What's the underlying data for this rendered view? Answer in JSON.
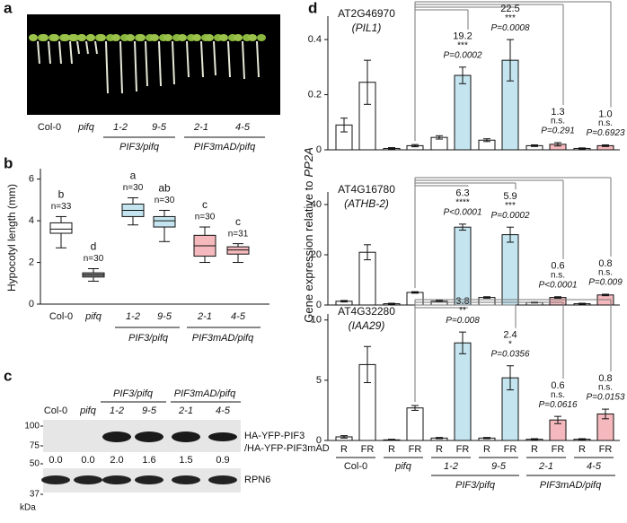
{
  "panels": {
    "a": {
      "label": "a",
      "lanes": [
        "Col-0",
        "pifq",
        "1-2",
        "9-5",
        "2-1",
        "4-5"
      ],
      "groups": [
        "PIF3/pifq",
        "PIF3mAD/pifq"
      ]
    },
    "b": {
      "label": "b"
    },
    "c": {
      "label": "c",
      "lanes": [
        "Col-0",
        "pifq",
        "1-2",
        "9-5",
        "2-1",
        "4-5"
      ],
      "groups": [
        "PIF3/pifq",
        "PIF3mAD/pifq"
      ],
      "markers": [
        100,
        75,
        50,
        37
      ],
      "marker_unit": "kDa",
      "band_labels": [
        "HA-YFP-PIF3",
        "/HA-YFP-PIF3mAD"
      ],
      "loading_label": "RPN6",
      "quantification": [
        "0.0",
        "0.0",
        "2.0",
        "1.6",
        "1.5",
        "0.9"
      ]
    },
    "d": {
      "label": "d",
      "y_label": "Gene expression relative to",
      "y_label_gene": "PP2A"
    }
  },
  "chart_data": [
    {
      "type": "box",
      "y_label": "Hypocotyl length (mm)",
      "categories": [
        "Col-0",
        "pifq",
        "1-2",
        "9-5",
        "2-1",
        "4-5"
      ],
      "groups": [
        "PIF3/pifq",
        "PIF3mAD/pifq"
      ],
      "min": [
        2.7,
        1.1,
        3.8,
        3.0,
        2.0,
        2.0
      ],
      "q1": [
        3.4,
        1.3,
        4.2,
        3.7,
        2.3,
        2.4
      ],
      "median": [
        3.6,
        1.4,
        4.5,
        4.0,
        2.8,
        2.6
      ],
      "q3": [
        3.9,
        1.5,
        4.8,
        4.2,
        3.3,
        2.75
      ],
      "max": [
        4.2,
        1.7,
        5.1,
        4.5,
        3.7,
        2.9
      ],
      "letters": [
        "b",
        "d",
        "a",
        "ab",
        "c",
        "c"
      ],
      "n_labels": [
        "n=33",
        "n=30",
        "n=30",
        "n=30",
        "n=30",
        "n=31"
      ],
      "colors": [
        "#ffffff",
        "#8c8c8c",
        "#c4e5f0",
        "#c4e5f0",
        "#f5b9bd",
        "#f5b9bd"
      ],
      "ylim": [
        0,
        6.5
      ],
      "yticks": [
        0,
        2,
        4,
        6
      ]
    },
    {
      "type": "bar",
      "title": "AT2G46970",
      "subtitle": "(PIL1)",
      "values": [
        0.09,
        0.245,
        0.005,
        0.015,
        0.045,
        0.27,
        0.035,
        0.325,
        0.015,
        0.02,
        0.005,
        0.015
      ],
      "errors": [
        0.025,
        0.08,
        0.003,
        0.004,
        0.006,
        0.03,
        0.005,
        0.075,
        0.003,
        0.006,
        0.002,
        0.003
      ],
      "colors": [
        "#ffffff",
        "#ffffff",
        "#ffffff",
        "#ffffff",
        "#ffffff",
        "#c4e5f0",
        "#ffffff",
        "#c4e5f0",
        "#ffffff",
        "#f5b9bd",
        "#ffffff",
        "#f5b9bd"
      ],
      "ylim": [
        0,
        0.485
      ],
      "yticks": [
        0,
        0.2,
        0.4
      ],
      "annotations": [
        {
          "fold": "19.2",
          "stars": "***",
          "p": "P=0.0002"
        },
        {
          "fold": "22.5",
          "stars": "***",
          "p": "P=0.0008"
        },
        {
          "fold": "1.3",
          "stars": "n.s.",
          "p": "P=0.291"
        },
        {
          "fold": "1.0",
          "stars": "n.s.",
          "p": "P=0.6923"
        }
      ]
    },
    {
      "type": "bar",
      "title": "AT4G16780",
      "subtitle": "(ATHB-2)",
      "values": [
        1.5,
        21,
        0.5,
        5,
        1.5,
        31,
        3,
        28,
        1,
        3,
        0.5,
        4
      ],
      "errors": [
        0.3,
        3,
        0.2,
        0.3,
        0.3,
        1.2,
        0.3,
        3,
        0.2,
        0.3,
        0.2,
        0.3
      ],
      "colors": [
        "#ffffff",
        "#ffffff",
        "#ffffff",
        "#ffffff",
        "#ffffff",
        "#c4e5f0",
        "#ffffff",
        "#c4e5f0",
        "#ffffff",
        "#f5b9bd",
        "#ffffff",
        "#f5b9bd"
      ],
      "ylim": [
        0,
        45
      ],
      "yticks": [
        0,
        20,
        40
      ],
      "annotations": [
        {
          "fold": "6.3",
          "stars": "****",
          "p": "P<0.0001"
        },
        {
          "fold": "5.9",
          "stars": "***",
          "p": "P=0.0002"
        },
        {
          "fold": "0.6",
          "stars": "n.s.",
          "p": "P<0.0001"
        },
        {
          "fold": "0.8",
          "stars": "n.s.",
          "p": "P=0.009"
        }
      ]
    },
    {
      "type": "bar",
      "title": "AT4G32280",
      "subtitle": "(IAA29)",
      "categories": [
        "R",
        "FR",
        "R",
        "FR",
        "R",
        "FR",
        "R",
        "FR",
        "R",
        "FR",
        "R",
        "FR"
      ],
      "genotypes": [
        "Col-0",
        "pifq",
        "1-2",
        "9-5",
        "2-1",
        "4-5"
      ],
      "groups": [
        "PIF3/pifq",
        "PIF3mAD/pifq"
      ],
      "values": [
        0.3,
        6.3,
        0.05,
        2.7,
        0.2,
        8.1,
        0.2,
        5.2,
        0.1,
        1.7,
        0.1,
        2.2
      ],
      "errors": [
        0.1,
        1.5,
        0.05,
        0.2,
        0.05,
        0.9,
        0.05,
        1.0,
        0.05,
        0.3,
        0.05,
        0.4
      ],
      "colors": [
        "#ffffff",
        "#ffffff",
        "#ffffff",
        "#ffffff",
        "#ffffff",
        "#c4e5f0",
        "#ffffff",
        "#c4e5f0",
        "#ffffff",
        "#f5b9bd",
        "#ffffff",
        "#f5b9bd"
      ],
      "ylim": [
        0,
        10.5
      ],
      "yticks": [
        0,
        5,
        10
      ],
      "annotations": [
        {
          "fold": "3.8",
          "stars": "**",
          "p": "P=0.008"
        },
        {
          "fold": "2.4",
          "stars": "*",
          "p": "P=0.0356"
        },
        {
          "fold": "0.6",
          "stars": "n.s.",
          "p": "P=0.0616"
        },
        {
          "fold": "0.8",
          "stars": "n.s.",
          "p": "P=0.0153"
        }
      ]
    }
  ]
}
